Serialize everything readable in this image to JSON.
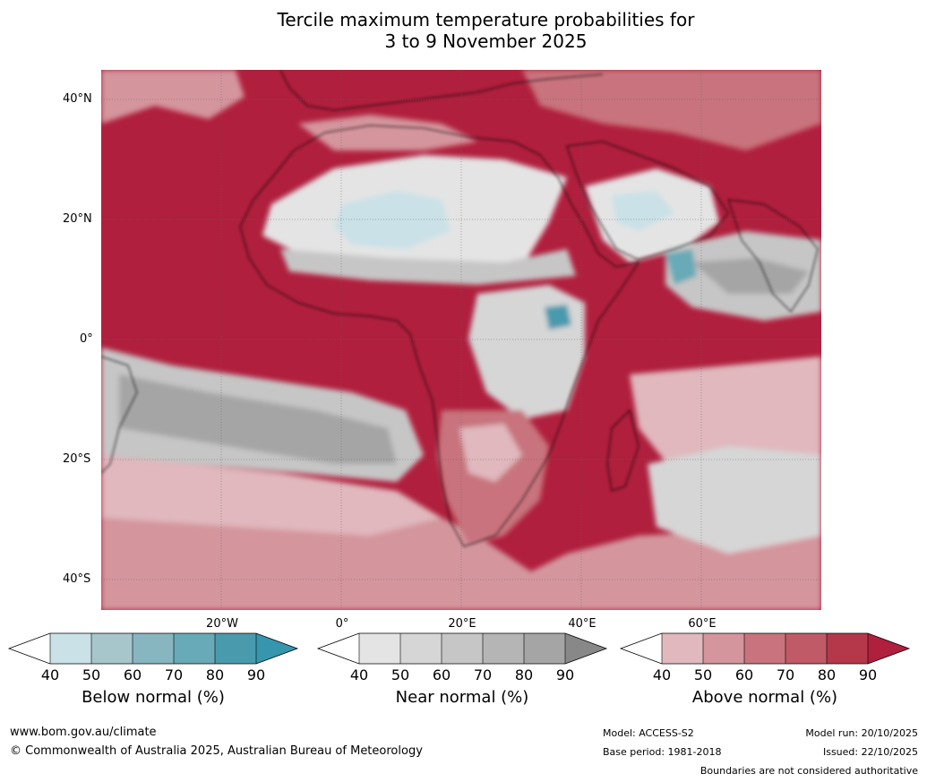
{
  "title_line1": "Tercile maximum temperature probabilities for",
  "title_line2": "3 to 9 November 2025",
  "map": {
    "lat_labels": [
      "40°N",
      "20°N",
      "0°",
      "20°S",
      "40°S"
    ],
    "lon_labels": [
      "20°W",
      "0°",
      "20°E",
      "40°E",
      "60°E"
    ]
  },
  "legends": [
    {
      "title": "Below normal (%)",
      "ticks": [
        "40",
        "50",
        "60",
        "70",
        "80",
        "90"
      ],
      "colors": [
        "#ffffff",
        "#c9e1e7",
        "#a7c6cc",
        "#87b6c0",
        "#68aab7",
        "#4a9aae",
        "#3596ad"
      ]
    },
    {
      "title": "Near normal (%)",
      "ticks": [
        "40",
        "50",
        "60",
        "70",
        "80",
        "90"
      ],
      "colors": [
        "#ffffff",
        "#e4e4e4",
        "#d6d6d6",
        "#c6c6c6",
        "#b5b5b5",
        "#a5a5a5",
        "#888888"
      ]
    },
    {
      "title": "Above normal (%)",
      "ticks": [
        "40",
        "50",
        "60",
        "70",
        "80",
        "90"
      ],
      "colors": [
        "#ffffff",
        "#e0b8bd",
        "#d4959d",
        "#c8737d",
        "#bf5a66",
        "#b4384a",
        "#b01f3d"
      ]
    }
  ],
  "footer": {
    "website": "www.bom.gov.au/climate",
    "copyright": "© Commonwealth of Australia 2025, Australian Bureau of Meteorology",
    "model": "Model: ACCESS-S2",
    "base_period": "Base period: 1981-2018",
    "model_run": "Model run: 20/10/2025",
    "issued": "Issued: 22/10/2025",
    "disclaimer": "Boundaries are not considered authoritative"
  }
}
